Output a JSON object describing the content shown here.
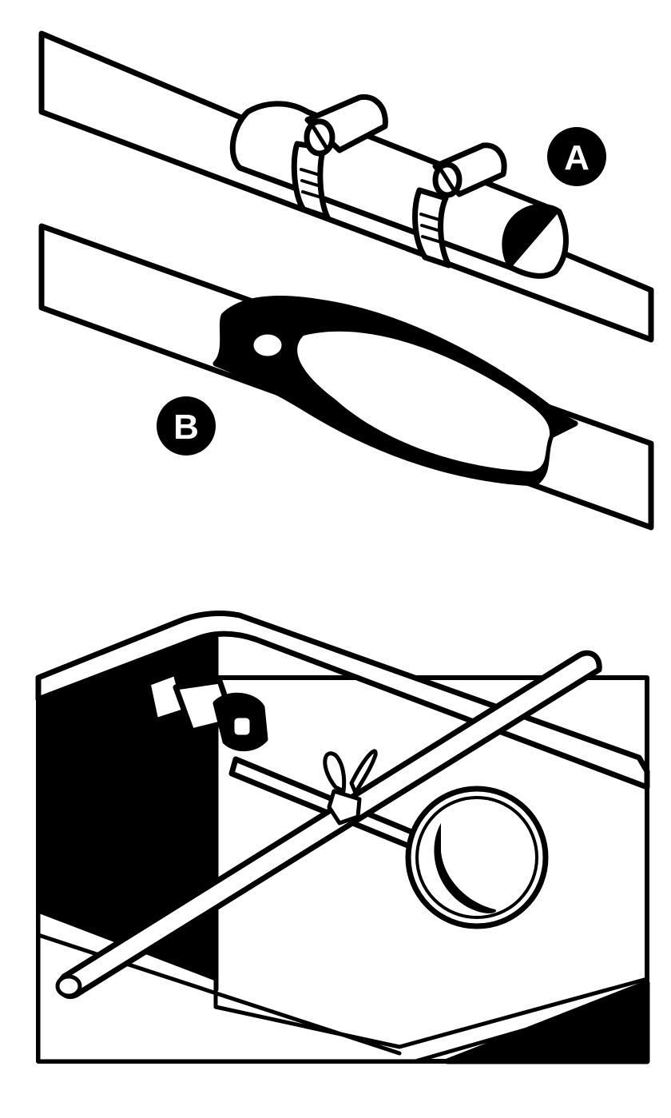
{
  "figure": {
    "panel_a": {
      "label": "A"
    },
    "panel_b": {
      "label": "B"
    }
  },
  "colors": {
    "ink": "#000000",
    "paper": "#ffffff"
  }
}
